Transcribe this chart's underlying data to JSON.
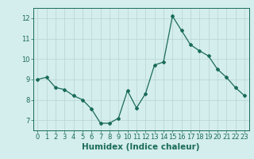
{
  "x": [
    0,
    1,
    2,
    3,
    4,
    5,
    6,
    7,
    8,
    9,
    10,
    11,
    12,
    13,
    14,
    15,
    16,
    17,
    18,
    19,
    20,
    21,
    22,
    23
  ],
  "y": [
    9.0,
    9.1,
    8.6,
    8.5,
    8.2,
    8.0,
    7.55,
    6.85,
    6.85,
    7.1,
    8.45,
    7.6,
    8.3,
    9.7,
    9.85,
    12.1,
    11.4,
    10.7,
    10.4,
    10.15,
    9.5,
    9.1,
    8.6,
    8.2
  ],
  "xlim": [
    -0.5,
    23.5
  ],
  "ylim": [
    6.5,
    12.5
  ],
  "yticks": [
    7,
    8,
    9,
    10,
    11,
    12
  ],
  "xticks": [
    0,
    1,
    2,
    3,
    4,
    5,
    6,
    7,
    8,
    9,
    10,
    11,
    12,
    13,
    14,
    15,
    16,
    17,
    18,
    19,
    20,
    21,
    22,
    23
  ],
  "xlabel": "Humidex (Indice chaleur)",
  "line_color": "#1a6b5a",
  "marker": "D",
  "marker_size": 2.0,
  "line_width": 0.9,
  "bg_color": "#d4eded",
  "grid_color": "#b8d4d4",
  "axes_color": "#1a6b5a",
  "xlabel_fontsize": 7.5,
  "tick_fontsize": 6.0
}
